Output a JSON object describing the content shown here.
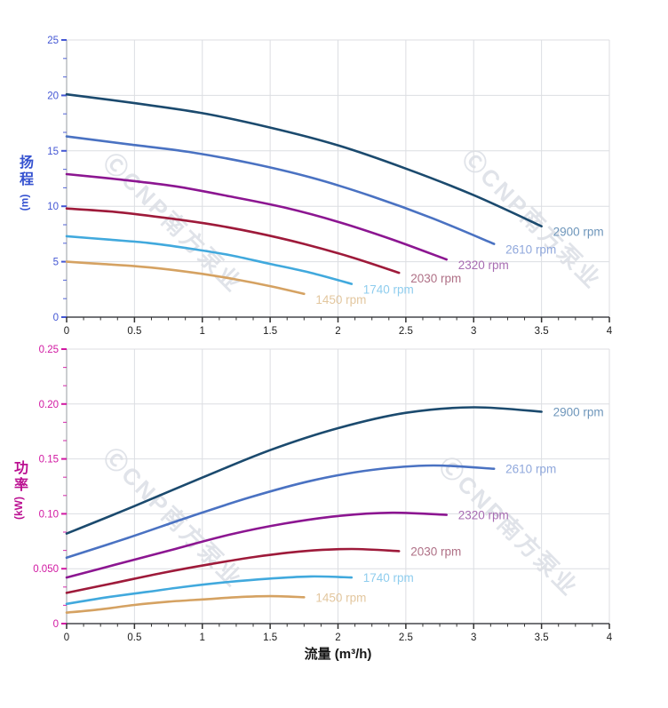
{
  "panel": {
    "background": "#ffffff"
  },
  "watermark": {
    "text": "ⒸCNP南方泵业",
    "color": "#bac2cf"
  },
  "chart_data": [
    {
      "id": "head-chart",
      "type": "line",
      "title": "",
      "y_title": "扬程",
      "y_unit": "(m)",
      "x_title": "",
      "xlim": [
        0,
        4
      ],
      "ylim": [
        0,
        25
      ],
      "grid": true,
      "legend_position": "curve-end-labels",
      "x_tick_values": [
        0,
        0.5,
        1,
        1.5,
        2,
        2.5,
        3,
        3.5,
        4
      ],
      "x_tick_labels": [
        "0",
        "0.5",
        "1",
        "1.5",
        "2",
        "2.5",
        "3",
        "3.5",
        "4"
      ],
      "y_tick_values": [
        0,
        5,
        10,
        15,
        20,
        25
      ],
      "y_tick_labels": [
        "0",
        "5",
        "10",
        "15",
        "20",
        "25"
      ],
      "axis_text_color": "#4457d4",
      "axis_title_color": "#3552d0",
      "series": [
        {
          "name": "2900 rpm",
          "color": "#1b4a6e",
          "label_color": "#6e96bb",
          "x": [
            0,
            0.5,
            1,
            1.5,
            2,
            2.5,
            3,
            3.5
          ],
          "y": [
            20.1,
            19.3,
            18.4,
            17.1,
            15.5,
            13.4,
            11.0,
            8.2
          ]
        },
        {
          "name": "2610 rpm",
          "color": "#4a72c2",
          "label_color": "#90a8dc",
          "x": [
            0,
            0.45,
            0.9,
            1.35,
            1.8,
            2.25,
            2.7,
            3.15
          ],
          "y": [
            16.3,
            15.6,
            14.9,
            13.9,
            12.6,
            10.9,
            8.9,
            6.6
          ]
        },
        {
          "name": "2320 rpm",
          "color": "#8c1691",
          "label_color": "#a76cb2",
          "x": [
            0,
            0.4,
            0.8,
            1.2,
            1.6,
            2.0,
            2.4,
            2.8
          ],
          "y": [
            12.9,
            12.4,
            11.8,
            10.9,
            9.9,
            8.6,
            7.0,
            5.2
          ]
        },
        {
          "name": "2030 rpm",
          "color": "#9e1a3a",
          "label_color": "#af7086",
          "x": [
            0,
            0.35,
            0.7,
            1.05,
            1.4,
            1.75,
            2.1,
            2.45
          ],
          "y": [
            9.8,
            9.5,
            9.0,
            8.4,
            7.6,
            6.6,
            5.4,
            4.0
          ]
        },
        {
          "name": "1740 rpm",
          "color": "#41a9dd",
          "label_color": "#8fcdee",
          "x": [
            0,
            0.3,
            0.6,
            0.9,
            1.2,
            1.5,
            1.8,
            2.1
          ],
          "y": [
            7.3,
            7.0,
            6.7,
            6.2,
            5.6,
            4.8,
            4.0,
            3.0
          ]
        },
        {
          "name": "1450 rpm",
          "color": "#d5a262",
          "label_color": "#e3c79f",
          "x": [
            0,
            0.25,
            0.5,
            0.75,
            1.0,
            1.25,
            1.5,
            1.75
          ],
          "y": [
            5.0,
            4.8,
            4.6,
            4.3,
            3.9,
            3.4,
            2.8,
            2.1
          ]
        }
      ]
    },
    {
      "id": "power-chart",
      "type": "line",
      "title": "",
      "y_title": "功率",
      "y_unit": "(kW)",
      "x_title": "流量 (m³/h)",
      "xlim": [
        0,
        4
      ],
      "ylim": [
        0,
        0.25
      ],
      "grid": true,
      "legend_position": "curve-end-labels",
      "x_tick_values": [
        0,
        0.5,
        1,
        1.5,
        2,
        2.5,
        3,
        3.5,
        4
      ],
      "x_tick_labels": [
        "0",
        "0.5",
        "1",
        "1.5",
        "2",
        "2.5",
        "3",
        "3.5",
        "4"
      ],
      "y_tick_values": [
        0,
        0.05,
        0.1,
        0.15,
        0.2,
        0.25
      ],
      "y_tick_labels": [
        "0",
        "0.050",
        "0.10",
        "0.15",
        "0.20",
        "0.25"
      ],
      "axis_text_color": "#d118a2",
      "axis_title_color": "#bb1091",
      "series": [
        {
          "name": "2900 rpm",
          "color": "#1b4a6e",
          "label_color": "#6e96bb",
          "x": [
            0,
            0.5,
            1,
            1.5,
            2,
            2.5,
            3,
            3.5
          ],
          "y": [
            0.082,
            0.107,
            0.133,
            0.158,
            0.178,
            0.192,
            0.197,
            0.193
          ]
        },
        {
          "name": "2610 rpm",
          "color": "#4a72c2",
          "label_color": "#90a8dc",
          "x": [
            0,
            0.45,
            0.9,
            1.35,
            1.8,
            2.25,
            2.7,
            3.15
          ],
          "y": [
            0.06,
            0.078,
            0.097,
            0.115,
            0.13,
            0.14,
            0.144,
            0.141
          ]
        },
        {
          "name": "2320 rpm",
          "color": "#8c1691",
          "label_color": "#a76cb2",
          "x": [
            0,
            0.4,
            0.8,
            1.2,
            1.6,
            2.0,
            2.4,
            2.8
          ],
          "y": [
            0.042,
            0.055,
            0.068,
            0.081,
            0.091,
            0.098,
            0.101,
            0.099
          ]
        },
        {
          "name": "2030 rpm",
          "color": "#9e1a3a",
          "label_color": "#af7086",
          "x": [
            0,
            0.35,
            0.7,
            1.05,
            1.4,
            1.75,
            2.1,
            2.45
          ],
          "y": [
            0.028,
            0.037,
            0.046,
            0.054,
            0.061,
            0.066,
            0.068,
            0.066
          ]
        },
        {
          "name": "1740 rpm",
          "color": "#41a9dd",
          "label_color": "#8fcdee",
          "x": [
            0,
            0.3,
            0.6,
            0.9,
            1.2,
            1.5,
            1.8,
            2.1
          ],
          "y": [
            0.018,
            0.024,
            0.029,
            0.034,
            0.038,
            0.041,
            0.043,
            0.042
          ]
        },
        {
          "name": "1450 rpm",
          "color": "#d5a262",
          "label_color": "#e3c79f",
          "x": [
            0,
            0.25,
            0.5,
            0.75,
            1.0,
            1.25,
            1.5,
            1.75
          ],
          "y": [
            0.01,
            0.013,
            0.017,
            0.02,
            0.022,
            0.024,
            0.025,
            0.024
          ]
        }
      ]
    }
  ]
}
